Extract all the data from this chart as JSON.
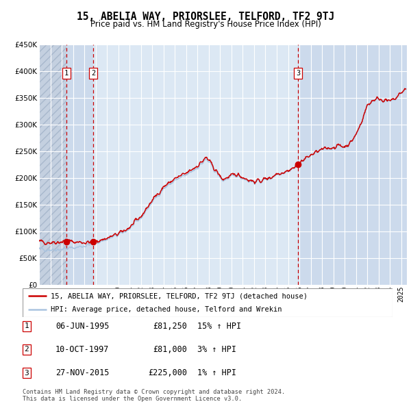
{
  "title": "15, ABELIA WAY, PRIORSLEE, TELFORD, TF2 9TJ",
  "subtitle": "Price paid vs. HM Land Registry's House Price Index (HPI)",
  "legend_line1": "15, ABELIA WAY, PRIORSLEE, TELFORD, TF2 9TJ (detached house)",
  "legend_line2": "HPI: Average price, detached house, Telford and Wrekin",
  "sale1_date": "06-JUN-1995",
  "sale1_price": 81250,
  "sale1_pct": "15% ↑ HPI",
  "sale1_year": 1995.44,
  "sale2_date": "10-OCT-1997",
  "sale2_price": 81000,
  "sale2_pct": "3% ↑ HPI",
  "sale2_year": 1997.78,
  "sale3_date": "27-NOV-2015",
  "sale3_price": 225000,
  "sale3_pct": "1% ↑ HPI",
  "sale3_year": 2015.9,
  "footnote1": "Contains HM Land Registry data © Crown copyright and database right 2024.",
  "footnote2": "This data is licensed under the Open Government Licence v3.0.",
  "hpi_line_color": "#aac4e0",
  "price_line_color": "#cc0000",
  "dot_color": "#cc0000",
  "vline_color": "#cc0000",
  "bg_plot_color": "#dce8f4",
  "grid_color": "#ffffff",
  "ylim": [
    0,
    450000
  ],
  "xlim_start": 1993.0,
  "xlim_end": 2025.5
}
